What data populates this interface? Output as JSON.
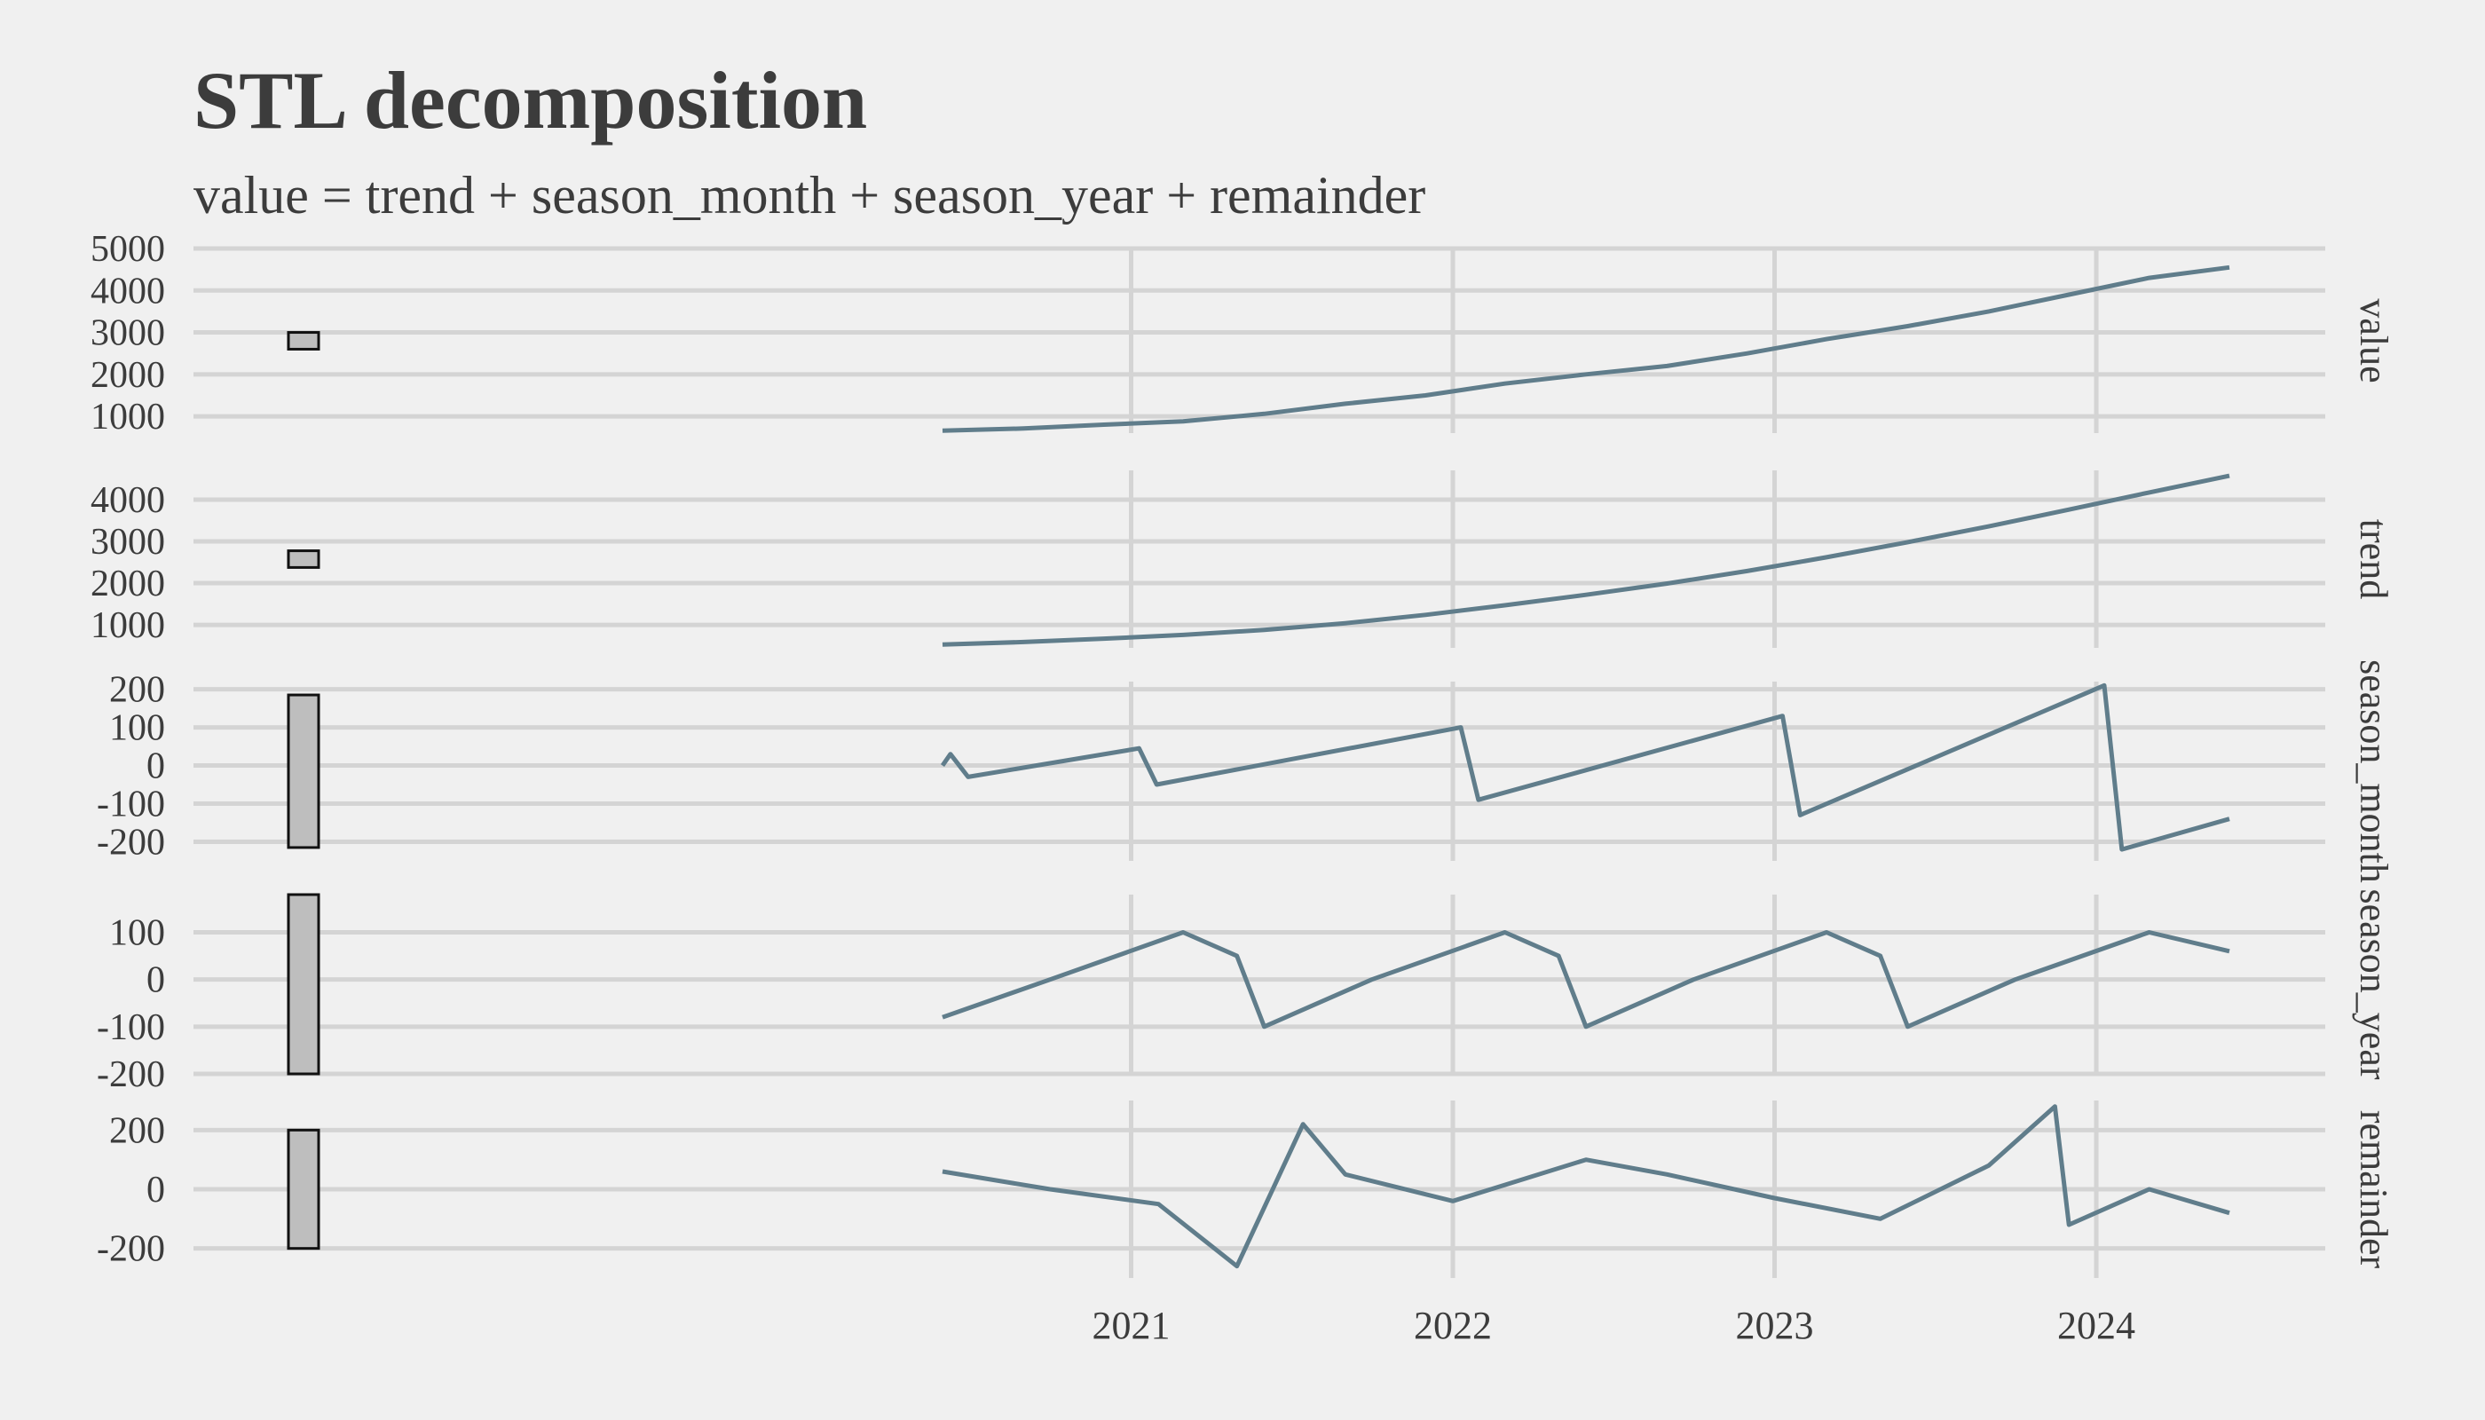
{
  "chart_data": {
    "type": "line",
    "title": "STL decomposition",
    "subtitle": "value = trend + season_month + season_year + remainder",
    "x_start": "2020-06-01",
    "x_end": "2024-05-31",
    "x_ticks": [
      "2021",
      "2022",
      "2023",
      "2024"
    ],
    "line_color": "#607d8b",
    "scale_bar_fill": "#bebebe",
    "grid": true,
    "panels": [
      {
        "name": "value",
        "label": "value",
        "ylim": [
          600,
          5000
        ],
        "y_ticks": [
          1000,
          2000,
          3000,
          4000,
          5000
        ],
        "y_tick_labels": [
          "1000",
          "2000",
          "3000",
          "4000",
          "5000"
        ],
        "scale_bar_range": 400,
        "series": [
          {
            "name": "value",
            "points": [
              [
                "2020-06-01",
                660
              ],
              [
                "2020-09-01",
                710
              ],
              [
                "2020-12-01",
                800
              ],
              [
                "2021-03-01",
                880
              ],
              [
                "2021-06-01",
                1060
              ],
              [
                "2021-09-01",
                1300
              ],
              [
                "2021-12-01",
                1500
              ],
              [
                "2022-03-01",
                1780
              ],
              [
                "2022-06-01",
                2000
              ],
              [
                "2022-09-01",
                2200
              ],
              [
                "2022-12-01",
                2500
              ],
              [
                "2023-03-01",
                2840
              ],
              [
                "2023-06-01",
                3150
              ],
              [
                "2023-09-01",
                3500
              ],
              [
                "2023-12-01",
                3900
              ],
              [
                "2024-03-01",
                4300
              ],
              [
                "2024-05-31",
                4550
              ]
            ]
          }
        ]
      },
      {
        "name": "trend",
        "label": "trend",
        "ylim": [
          450,
          4700
        ],
        "y_ticks": [
          1000,
          2000,
          3000,
          4000
        ],
        "y_tick_labels": [
          "1000",
          "2000",
          "3000",
          "4000"
        ],
        "scale_bar_range": 400,
        "series": [
          {
            "name": "trend",
            "points": [
              [
                "2020-06-01",
                530
              ],
              [
                "2020-09-01",
                590
              ],
              [
                "2020-12-01",
                670
              ],
              [
                "2021-03-01",
                760
              ],
              [
                "2021-06-01",
                880
              ],
              [
                "2021-09-01",
                1040
              ],
              [
                "2021-12-01",
                1240
              ],
              [
                "2022-03-01",
                1470
              ],
              [
                "2022-06-01",
                1720
              ],
              [
                "2022-09-01",
                1990
              ],
              [
                "2022-12-01",
                2290
              ],
              [
                "2023-03-01",
                2620
              ],
              [
                "2023-06-01",
                2980
              ],
              [
                "2023-09-01",
                3360
              ],
              [
                "2023-12-01",
                3760
              ],
              [
                "2024-03-01",
                4170
              ],
              [
                "2024-05-31",
                4570
              ]
            ]
          }
        ]
      },
      {
        "name": "season_month",
        "label": "season_month",
        "ylim": [
          -250,
          220
        ],
        "y_ticks": [
          -200,
          -100,
          0,
          100,
          200
        ],
        "y_tick_labels": [
          "-200",
          "-100",
          "0",
          "100",
          "200"
        ],
        "scale_bar_range": 400,
        "series": [
          {
            "name": "season_month",
            "points": [
              [
                "2020-06-01",
                0
              ],
              [
                "2020-06-10",
                30
              ],
              [
                "2020-06-30",
                -30
              ],
              [
                "2021-01-10",
                45
              ],
              [
                "2021-01-30",
                -50
              ],
              [
                "2022-01-10",
                100
              ],
              [
                "2022-01-30",
                -90
              ],
              [
                "2023-01-10",
                130
              ],
              [
                "2023-01-30",
                -130
              ],
              [
                "2024-01-10",
                210
              ],
              [
                "2024-01-30",
                -220
              ],
              [
                "2024-05-31",
                -140
              ]
            ]
          }
        ]
      },
      {
        "name": "season_year",
        "label": "season_year",
        "ylim": [
          -200,
          180
        ],
        "y_ticks": [
          -200,
          -100,
          0,
          100
        ],
        "y_tick_labels": [
          "-200",
          "-100",
          "0",
          "100"
        ],
        "scale_bar_range": 400,
        "series": [
          {
            "name": "season_year",
            "points": [
              [
                "2020-06-01",
                -80
              ],
              [
                "2020-10-01",
                0
              ],
              [
                "2021-03-01",
                100
              ],
              [
                "2021-05-01",
                50
              ],
              [
                "2021-06-01",
                -100
              ],
              [
                "2021-10-01",
                0
              ],
              [
                "2022-03-01",
                100
              ],
              [
                "2022-05-01",
                50
              ],
              [
                "2022-06-01",
                -100
              ],
              [
                "2022-10-01",
                0
              ],
              [
                "2023-03-01",
                100
              ],
              [
                "2023-05-01",
                50
              ],
              [
                "2023-06-01",
                -100
              ],
              [
                "2023-10-01",
                0
              ],
              [
                "2024-03-01",
                100
              ],
              [
                "2024-05-31",
                60
              ]
            ]
          }
        ]
      },
      {
        "name": "remainder",
        "label": "remainder",
        "ylim": [
          -300,
          300
        ],
        "y_ticks": [
          -200,
          0,
          200
        ],
        "y_tick_labels": [
          "-200",
          "0",
          "200"
        ],
        "scale_bar_range": 400,
        "series": [
          {
            "name": "remainder",
            "points": [
              [
                "2020-06-01",
                60
              ],
              [
                "2020-10-01",
                0
              ],
              [
                "2021-02-01",
                -50
              ],
              [
                "2021-05-01",
                -260
              ],
              [
                "2021-07-15",
                220
              ],
              [
                "2021-09-01",
                50
              ],
              [
                "2022-01-01",
                -40
              ],
              [
                "2022-06-01",
                100
              ],
              [
                "2022-09-01",
                50
              ],
              [
                "2023-01-01",
                -30
              ],
              [
                "2023-05-01",
                -100
              ],
              [
                "2023-09-01",
                80
              ],
              [
                "2023-11-15",
                280
              ],
              [
                "2023-12-01",
                -120
              ],
              [
                "2024-03-01",
                0
              ],
              [
                "2024-05-31",
                -80
              ]
            ]
          }
        ]
      }
    ]
  }
}
